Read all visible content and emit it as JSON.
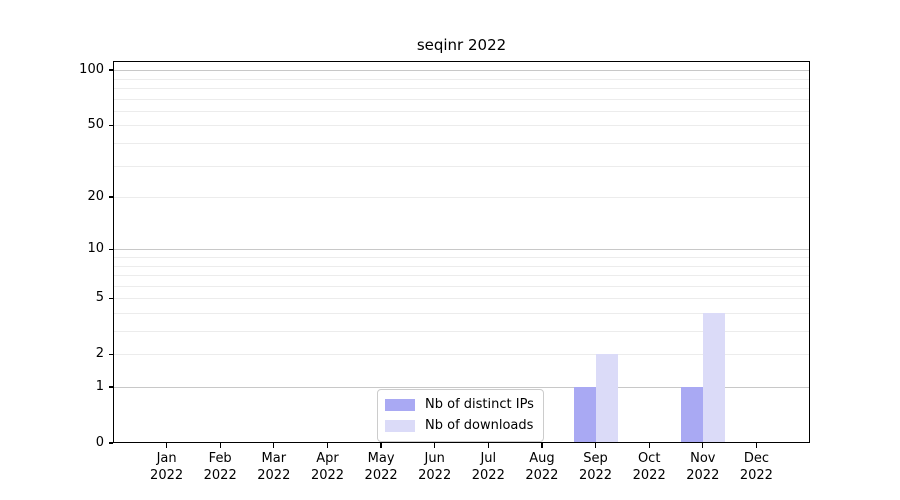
{
  "chart_data": {
    "type": "bar",
    "title": "seqinr 2022",
    "xlabel": "",
    "ylabel": "",
    "year": "2022",
    "months": [
      "Jan",
      "Feb",
      "Mar",
      "Apr",
      "May",
      "Jun",
      "Jul",
      "Aug",
      "Sep",
      "Oct",
      "Nov",
      "Dec"
    ],
    "categories": [
      "Jan 2022",
      "Feb 2022",
      "Mar 2022",
      "Apr 2022",
      "May 2022",
      "Jun 2022",
      "Jul 2022",
      "Aug 2022",
      "Sep 2022",
      "Oct 2022",
      "Nov 2022",
      "Dec 2022"
    ],
    "series": [
      {
        "name": "Nb of distinct IPs",
        "color": "#a9a9f3",
        "values": [
          0,
          0,
          0,
          0,
          0,
          0,
          0,
          0,
          1,
          0,
          1,
          0
        ]
      },
      {
        "name": "Nb of downloads",
        "color": "#dbdbf8",
        "values": [
          0,
          0,
          0,
          0,
          0,
          0,
          0,
          0,
          2,
          0,
          4,
          0
        ]
      }
    ],
    "yscale": "log1p",
    "ylim": [
      0,
      112
    ],
    "yticks": [
      0,
      1,
      2,
      5,
      10,
      20,
      50,
      100
    ],
    "grid": {
      "on": true,
      "major_values": [
        1,
        10,
        100
      ],
      "minor_values": [
        2,
        3,
        4,
        5,
        6,
        7,
        8,
        9,
        20,
        30,
        40,
        50,
        60,
        70,
        80,
        90
      ],
      "major_color": "#c8c8c8",
      "minor_color": "#ececec"
    },
    "legend": {
      "position": "bottom-center",
      "border_color": "#cccccc",
      "background": "#ffffff"
    },
    "colors": {
      "spine": "#000000",
      "text": "#000000"
    }
  }
}
